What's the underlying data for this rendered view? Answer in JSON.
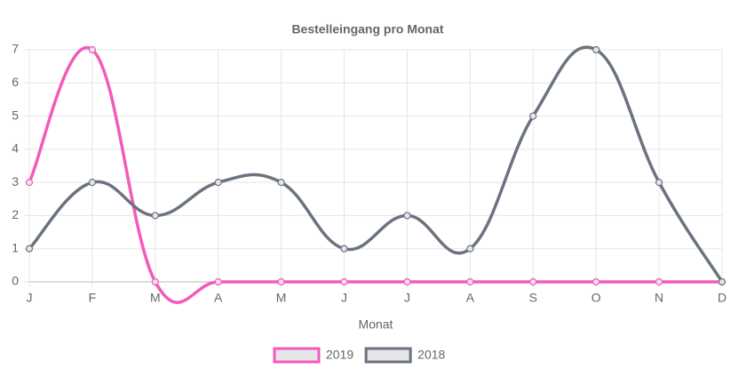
{
  "chart_data": {
    "type": "line",
    "title": "Bestelleingang pro Monat",
    "x_label": "Monat",
    "categories": [
      "J",
      "F",
      "M",
      "A",
      "M",
      "J",
      "J",
      "A",
      "S",
      "O",
      "N",
      "D"
    ],
    "series": [
      {
        "name": "2019",
        "color": "#f35bbb",
        "values": [
          3,
          7,
          0,
          0,
          0,
          0,
          0,
          0,
          0,
          0,
          0,
          0
        ]
      },
      {
        "name": "2018",
        "color": "#6b7380",
        "values": [
          1,
          3,
          2,
          3,
          3,
          1,
          2,
          1,
          5,
          7,
          3,
          0
        ]
      }
    ],
    "ylim": [
      0,
      7
    ],
    "yticks": [
      0,
      1,
      2,
      3,
      4,
      5,
      6,
      7
    ],
    "grid": true,
    "legend": "bottom"
  }
}
